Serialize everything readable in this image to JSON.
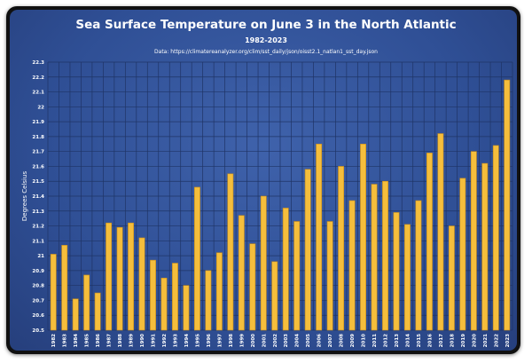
{
  "chart_data": {
    "type": "bar",
    "title": "Sea Surface Temperature on June 3 in the North Atlantic",
    "subtitle": "1982-2023",
    "source": "Data: https://climatereanalyzer.org/clim/sst_daily/json/oisst2.1_natlan1_sst_day.json",
    "xlabel": "",
    "ylabel": "Degrees Celsius",
    "ylim": [
      20.5,
      22.3
    ],
    "yticks": [
      "20.5",
      "20.6",
      "20.7",
      "20.8",
      "20.9",
      "21",
      "21.1",
      "21.2",
      "21.3",
      "21.4",
      "21.5",
      "21.6",
      "21.7",
      "21.8",
      "21.9",
      "22",
      "22.1",
      "22.2",
      "22.3"
    ],
    "grid": true,
    "bar_color": "#f5be3c",
    "categories": [
      "1982",
      "1983",
      "1984",
      "1985",
      "1986",
      "1987",
      "1988",
      "1989",
      "1990",
      "1991",
      "1992",
      "1993",
      "1994",
      "1995",
      "1996",
      "1997",
      "1998",
      "1999",
      "2000",
      "2001",
      "2002",
      "2003",
      "2004",
      "2005",
      "2006",
      "2007",
      "2008",
      "2009",
      "2010",
      "2011",
      "2012",
      "2013",
      "2014",
      "2015",
      "2016",
      "2017",
      "2018",
      "2019",
      "2020",
      "2021",
      "2022",
      "2023"
    ],
    "values": [
      21.01,
      21.07,
      20.71,
      20.87,
      20.75,
      21.22,
      21.19,
      21.22,
      21.12,
      20.97,
      20.85,
      20.95,
      20.8,
      21.46,
      20.9,
      21.02,
      21.55,
      21.27,
      21.08,
      21.4,
      20.96,
      21.32,
      21.23,
      21.58,
      21.75,
      21.23,
      21.6,
      21.37,
      21.75,
      21.48,
      21.5,
      21.29,
      21.21,
      21.37,
      21.69,
      21.82,
      21.2,
      21.52,
      21.7,
      21.62,
      21.74,
      22.18
    ]
  }
}
